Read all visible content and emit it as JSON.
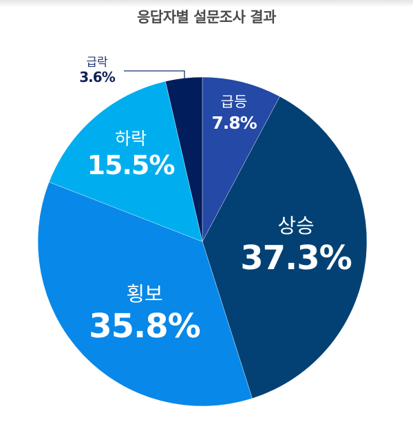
{
  "title": "응답자별 설문조사 결과",
  "chart_data": {
    "type": "pie",
    "title": "응답자별 설문조사 결과",
    "categories": [
      "급등",
      "상승",
      "횡보",
      "하락",
      "급락"
    ],
    "values": [
      7.8,
      37.3,
      35.8,
      15.5,
      3.6
    ],
    "unit": "%",
    "start_angle": "12 o'clock, clockwise",
    "colors": [
      "#2449a6",
      "#034174",
      "#0888e8",
      "#00aeef",
      "#011d5c"
    ],
    "legend": "none (labels inside slices; 급락 label outside with leader line)"
  },
  "labels": {
    "surge": {
      "name": "급등",
      "pct": "7.8%"
    },
    "rise": {
      "name": "상승",
      "pct": "37.3%"
    },
    "flat": {
      "name": "횡보",
      "pct": "35.8%"
    },
    "fall": {
      "name": "하락",
      "pct": "15.5%"
    },
    "plunge": {
      "name": "급락",
      "pct": "3.6%"
    }
  }
}
